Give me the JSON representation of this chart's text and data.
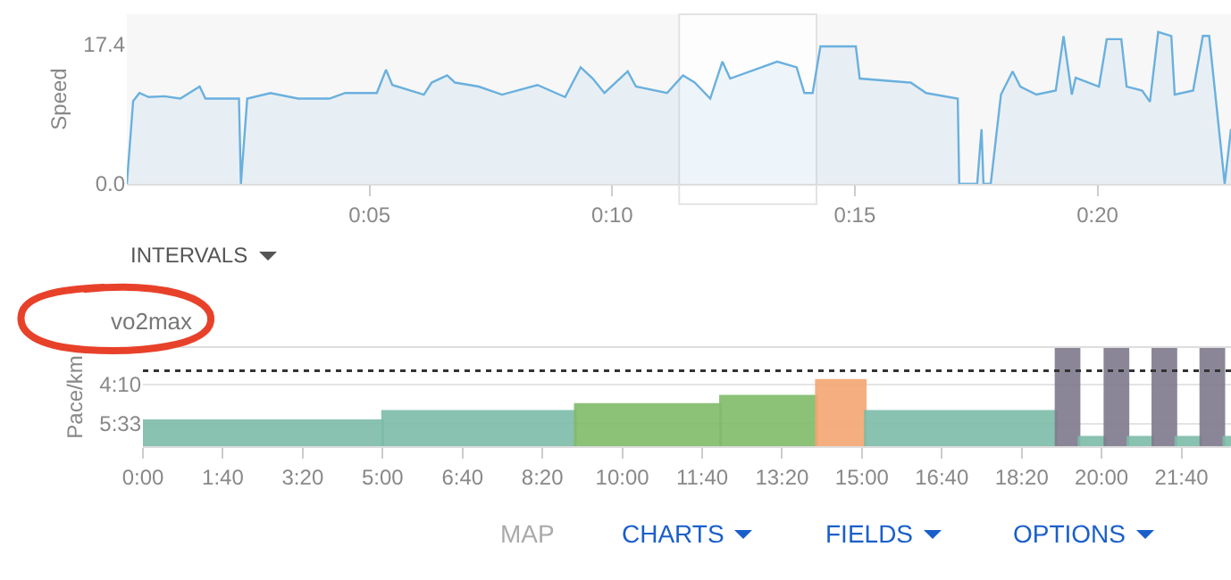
{
  "chart_data": [
    {
      "type": "area",
      "ylabel": "Speed",
      "color": "#6ab0de",
      "grid": false,
      "legend": false,
      "x": [
        0,
        0.13,
        0.26,
        0.45,
        0.78,
        1.1,
        1.5,
        1.62,
        2.31,
        2.35,
        2.48,
        2.96,
        3.53,
        4.17,
        4.5,
        5.15,
        5.34,
        5.47,
        6.12,
        6.28,
        6.6,
        6.76,
        7.25,
        7.73,
        8.46,
        9.03,
        9.35,
        9.6,
        9.84,
        10.32,
        10.49,
        11.13,
        11.46,
        11.7,
        12.02,
        12.27,
        12.43,
        13.4,
        13.8,
        13.96,
        14.13,
        14.29,
        15.02,
        15.1,
        16.15,
        16.47,
        17.12,
        17.15,
        17.52,
        17.61,
        17.65,
        17.8,
        18.01,
        18.25,
        18.41,
        18.74,
        19.14,
        19.3,
        19.47,
        19.55,
        20.03,
        20.19,
        20.49,
        20.6,
        20.92,
        21.08,
        21.25,
        21.52,
        21.59,
        21.97,
        22.17,
        22.3,
        22.62,
        22.75
      ],
      "values": [
        0,
        10.3,
        11.3,
        10.8,
        10.9,
        10.6,
        12.1,
        10.6,
        10.6,
        0,
        10.6,
        11.3,
        10.6,
        10.6,
        11.3,
        11.3,
        14.2,
        12.3,
        11.1,
        12.6,
        13.5,
        12.6,
        12.1,
        11.1,
        12.3,
        10.8,
        14.5,
        13.1,
        11.3,
        14.0,
        12.1,
        11.3,
        13.5,
        12.6,
        10.6,
        15.2,
        13.1,
        15.2,
        14.5,
        11.3,
        11.3,
        17.1,
        17.1,
        13.1,
        12.6,
        11.3,
        10.6,
        0,
        0,
        6.8,
        0,
        0,
        11.1,
        14.0,
        12.1,
        11.1,
        11.6,
        18.4,
        11.1,
        13.2,
        12.1,
        18.0,
        18.0,
        12.1,
        11.6,
        10.2,
        18.9,
        18.4,
        11.1,
        11.6,
        18.4,
        18.4,
        0,
        6.8
      ],
      "xlim": [
        0,
        22.75
      ],
      "xticks": [
        {
          "value": 5,
          "label": "0:05"
        },
        {
          "value": 10,
          "label": "0:10"
        },
        {
          "value": 15,
          "label": "0:15"
        },
        {
          "value": 20,
          "label": "0:20"
        }
      ],
      "ylim": [
        0,
        21.1
      ],
      "yticks": [
        {
          "value": 0,
          "label": "0.0"
        },
        17.4
      ],
      "bands": [
        {
          "axis": "x",
          "from": 11.38,
          "to": 14.21,
          "color": "#ffffff"
        }
      ]
    },
    {
      "type": "histogram",
      "title": "vo2max",
      "ylabel": "Pace/km",
      "grid": "y",
      "legend": false,
      "bins": [
        0,
        5,
        9.02,
        12.05,
        14.05,
        15.07,
        19.05,
        19.53,
        20.07,
        20.55,
        21.07,
        21.55,
        22.07,
        22.55,
        22.7
      ],
      "values": [
        -0.9,
        -1.23,
        -1.48,
        -1.77,
        -2.33,
        -1.23,
        -3.48,
        -0.32,
        -3.48,
        -0.32,
        -3.48,
        -0.32,
        -3.48,
        -0.32
      ],
      "base": [
        6.35,
        6.35,
        6.35,
        6.35,
        6.35,
        6.35,
        6.35,
        6.35,
        6.35,
        6.35,
        6.35,
        6.35,
        6.35,
        6.35
      ],
      "colors": [
        "#7dbca8",
        "#7dbca8",
        "#80bb6a",
        "#80bb6a",
        "#f4a672",
        "#7dbca8",
        "#7f7a8c",
        "#7dbca8",
        "#7f7a8c",
        "#7dbca8",
        "#7f7a8c",
        "#7dbca8",
        "#7f7a8c",
        "#7dbca8"
      ],
      "xlim": [
        0,
        22.7
      ],
      "xticks": [
        {
          "value": 0,
          "label": "0:00"
        },
        {
          "value": 1.6667,
          "label": "1:40"
        },
        {
          "value": 3.3333,
          "label": "3:20"
        },
        {
          "value": 5,
          "label": "5:00"
        },
        {
          "value": 6.6667,
          "label": "6:40"
        },
        {
          "value": 8.3333,
          "label": "8:20"
        },
        {
          "value": 10,
          "label": "10:00"
        },
        {
          "value": 11.6667,
          "label": "11:40"
        },
        {
          "value": 13.3333,
          "label": "13:20"
        },
        {
          "value": 15,
          "label": "15:00"
        },
        {
          "value": 16.6667,
          "label": "16:40"
        },
        {
          "value": 18.3333,
          "label": "18:20"
        },
        {
          "value": 20,
          "label": "20:00"
        },
        {
          "value": 21.6667,
          "label": "21:40"
        }
      ],
      "ylim": [
        6.35,
        2.87
      ],
      "yticks": [
        {
          "value": 4.1667,
          "label": "4:10"
        },
        {
          "value": 5.55,
          "label": "5:33"
        }
      ],
      "ref_lines": [
        {
          "axis": "y",
          "value": 3.68,
          "color": "#333333",
          "line_style": "dotted"
        }
      ]
    },
    {
      "type": "other",
      "annotations": [
        "INTERVALS",
        "MAP",
        "CHARTS",
        "FIELDS",
        "OPTIONS"
      ]
    }
  ]
}
